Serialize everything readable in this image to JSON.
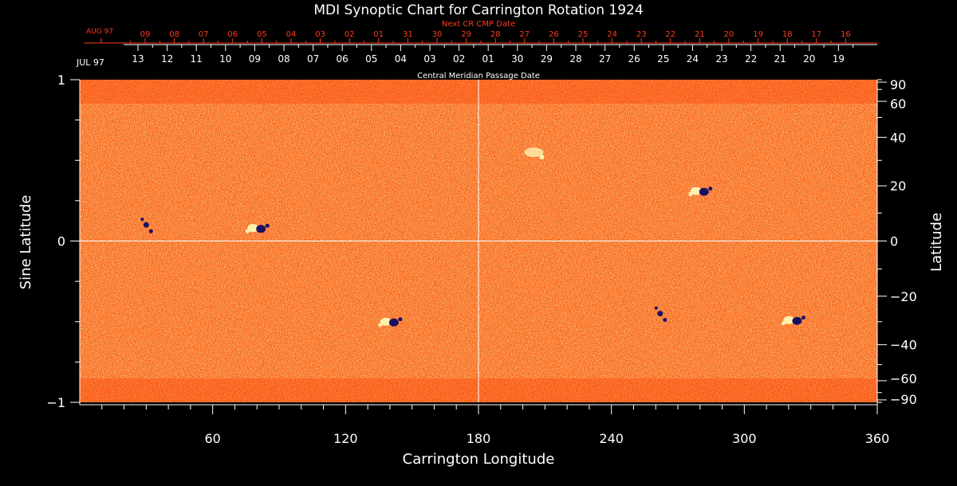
{
  "chart_data": {
    "type": "heatmap",
    "title": "MDI Synoptic Chart for Carrington Rotation 1924",
    "xlabel": "Carrington Longitude",
    "ylabel_left": "Sine Latitude",
    "ylabel_right": "Latitude",
    "xlim": [
      0,
      360
    ],
    "ylim": [
      -1,
      1
    ],
    "x_ticks": [
      "60",
      "120",
      "180",
      "240",
      "300",
      "360"
    ],
    "x_tick_values": [
      60,
      120,
      180,
      240,
      300,
      360
    ],
    "y_left_ticks": [
      "1",
      "0",
      "−1"
    ],
    "y_left_tick_values": [
      1,
      0,
      -1
    ],
    "y_right_ticks": [
      "90",
      "60",
      "40",
      "20",
      "0",
      "−20",
      "−40",
      "−60",
      "−90"
    ],
    "y_right_tick_values": [
      90,
      60,
      40,
      20,
      0,
      -20,
      -40,
      -60,
      -90
    ],
    "cmp_axis_label": "Central Meridian Passage Date",
    "cmp_start_month": "JUL 97",
    "cmp_dates": [
      "13",
      "12",
      "11",
      "10",
      "09",
      "08",
      "07",
      "06",
      "05",
      "04",
      "03",
      "02",
      "01",
      "30",
      "29",
      "28",
      "27",
      "26",
      "25",
      "24",
      "23",
      "22",
      "21",
      "20",
      "19"
    ],
    "next_cr_label": "Next CR CMP Date",
    "next_cr_start_month": "AUG 97",
    "next_cr_dates": [
      "09",
      "08",
      "07",
      "06",
      "05",
      "04",
      "03",
      "02",
      "01",
      "31",
      "30",
      "29",
      "28",
      "27",
      "26",
      "25",
      "24",
      "23",
      "22",
      "21",
      "20",
      "19",
      "18",
      "17",
      "16"
    ],
    "grid": "crosshair at longitude 180 and latitude 0",
    "colors": {
      "background": "#000000",
      "field_base": "#ff5a0a",
      "field_high": "#fff2b0",
      "field_low": "#1a1060",
      "axis_primary": "#ffffff",
      "axis_secondary": "#ff3a1a"
    },
    "active_regions": [
      {
        "lon": 80,
        "sinlat": 0.08,
        "polarity": "bipolar"
      },
      {
        "lon": 140,
        "sinlat": -0.5,
        "polarity": "bipolar"
      },
      {
        "lon": 280,
        "sinlat": 0.31,
        "polarity": "bipolar"
      },
      {
        "lon": 205,
        "sinlat": 0.55,
        "polarity": "positive"
      },
      {
        "lon": 322,
        "sinlat": -0.49,
        "polarity": "bipolar"
      },
      {
        "lon": 262,
        "sinlat": -0.45,
        "polarity": "negative"
      },
      {
        "lon": 30,
        "sinlat": 0.1,
        "polarity": "negative"
      }
    ]
  }
}
